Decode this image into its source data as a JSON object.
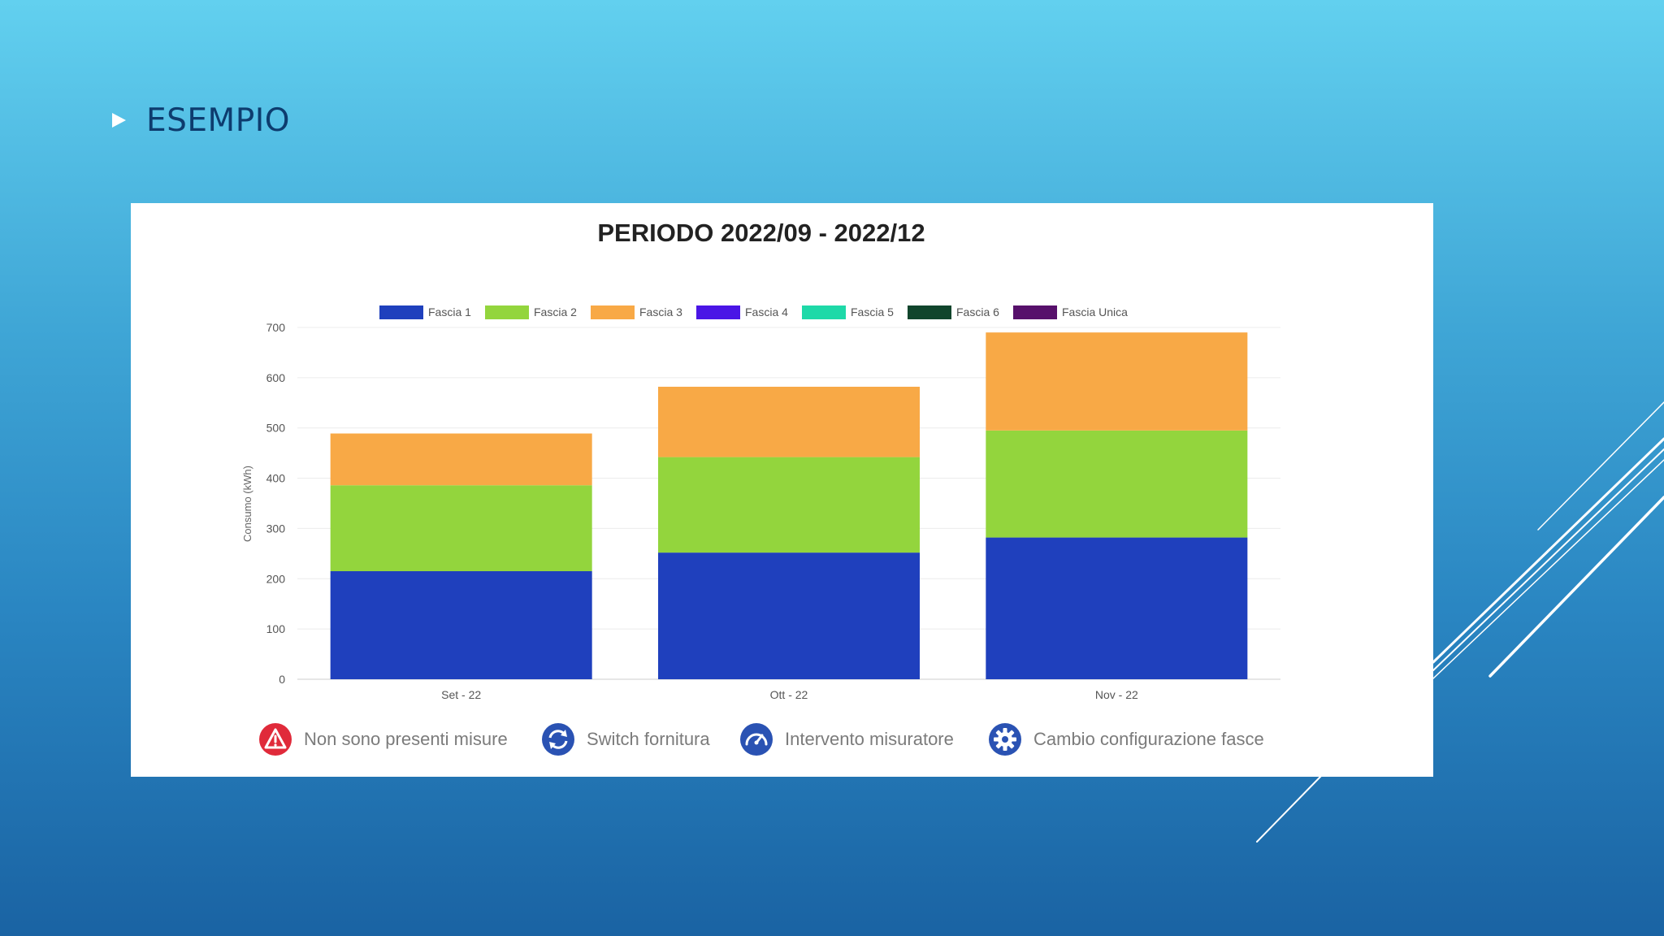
{
  "slide": {
    "heading": "ESEMPIO"
  },
  "colors": {
    "heading": "#0d3c6e",
    "fascia_1": "#1f40bd",
    "fascia_2": "#93d53d",
    "fascia_3": "#f8a946",
    "fascia_4": "#4a15e6",
    "fascia_5": "#1ed9a8",
    "fascia_6": "#11452c",
    "fascia_unica": "#57106b",
    "alert_red": "#e02a3a",
    "icon_blue": "#2a52b3"
  },
  "chart_data": {
    "type": "bar",
    "stacked": true,
    "title": "PERIODO 2022/09 - 2022/12",
    "ylabel": "Consumo (kWh)",
    "xlabel": "",
    "ylim": [
      0,
      700
    ],
    "yticks": [
      0,
      100,
      200,
      300,
      400,
      500,
      600,
      700
    ],
    "grid": true,
    "legend_position": "top",
    "categories": [
      "Set - 22",
      "Ott - 22",
      "Nov - 22"
    ],
    "series": [
      {
        "name": "Fascia 1",
        "values": [
          215,
          252,
          282
        ]
      },
      {
        "name": "Fascia 2",
        "values": [
          171,
          190,
          213
        ]
      },
      {
        "name": "Fascia 3",
        "values": [
          103,
          140,
          195
        ]
      },
      {
        "name": "Fascia 4",
        "values": [
          0,
          0,
          0
        ]
      },
      {
        "name": "Fascia 5",
        "values": [
          0,
          0,
          0
        ]
      },
      {
        "name": "Fascia 6",
        "values": [
          0,
          0,
          0
        ]
      },
      {
        "name": "Fascia Unica",
        "values": [
          0,
          0,
          0
        ]
      }
    ]
  },
  "footer_legend": [
    {
      "label": "Non sono presenti misure",
      "icon": "warning-icon"
    },
    {
      "label": "Switch fornitura",
      "icon": "refresh-icon"
    },
    {
      "label": "Intervento misuratore",
      "icon": "gauge-icon"
    },
    {
      "label": "Cambio configurazione fasce",
      "icon": "gear-icon"
    }
  ]
}
